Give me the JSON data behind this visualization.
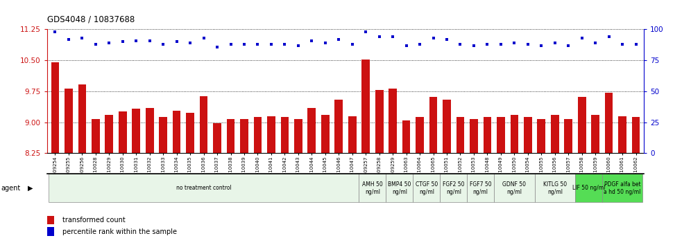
{
  "title": "GDS4048 / 10837688",
  "samples": [
    "GSM509254",
    "GSM509255",
    "GSM509256",
    "GSM510028",
    "GSM510029",
    "GSM510030",
    "GSM510031",
    "GSM510032",
    "GSM510033",
    "GSM510034",
    "GSM510035",
    "GSM510036",
    "GSM510037",
    "GSM510038",
    "GSM510039",
    "GSM510040",
    "GSM510041",
    "GSM510042",
    "GSM510043",
    "GSM510044",
    "GSM510045",
    "GSM510046",
    "GSM510047",
    "GSM509257",
    "GSM509258",
    "GSM509259",
    "GSM510063",
    "GSM510064",
    "GSM510065",
    "GSM510051",
    "GSM510052",
    "GSM510053",
    "GSM510048",
    "GSM510049",
    "GSM510050",
    "GSM510054",
    "GSM510055",
    "GSM510056",
    "GSM510057",
    "GSM510058",
    "GSM510059",
    "GSM510060",
    "GSM510061",
    "GSM510062"
  ],
  "bar_values": [
    10.45,
    9.82,
    9.92,
    9.08,
    9.18,
    9.26,
    9.32,
    9.35,
    9.12,
    9.28,
    9.22,
    9.63,
    8.97,
    9.08,
    9.08,
    9.12,
    9.14,
    9.12,
    9.08,
    9.35,
    9.18,
    9.55,
    9.15,
    10.52,
    9.78,
    9.82,
    9.05,
    9.12,
    9.62,
    9.55,
    9.12,
    9.08,
    9.12,
    9.12,
    9.18,
    9.12,
    9.08,
    9.18,
    9.08,
    9.62,
    9.18,
    9.72,
    9.15,
    9.12
  ],
  "percentile_values": [
    98,
    92,
    93,
    88,
    89,
    90,
    91,
    91,
    88,
    90,
    89,
    93,
    86,
    88,
    88,
    88,
    88,
    88,
    87,
    91,
    89,
    92,
    88,
    98,
    94,
    94,
    87,
    88,
    93,
    92,
    88,
    87,
    88,
    88,
    89,
    88,
    87,
    89,
    87,
    93,
    89,
    94,
    88,
    88
  ],
  "ylim_left": [
    8.25,
    11.25
  ],
  "ylim_right": [
    0,
    100
  ],
  "yticks_left": [
    8.25,
    9.0,
    9.75,
    10.5,
    11.25
  ],
  "yticks_right": [
    0,
    25,
    50,
    75,
    100
  ],
  "bar_color": "#cc1111",
  "dot_color": "#0000cc",
  "bar_width": 0.6,
  "agent_groups": [
    {
      "label": "no treatment control",
      "start": 0,
      "end": 22,
      "color": "#e8f5e8"
    },
    {
      "label": "AMH 50\nng/ml",
      "start": 23,
      "end": 24,
      "color": "#e8f5e8"
    },
    {
      "label": "BMP4 50\nng/ml",
      "start": 25,
      "end": 26,
      "color": "#e8f5e8"
    },
    {
      "label": "CTGF 50\nng/ml",
      "start": 27,
      "end": 28,
      "color": "#e8f5e8"
    },
    {
      "label": "FGF2 50\nng/ml",
      "start": 29,
      "end": 30,
      "color": "#e8f5e8"
    },
    {
      "label": "FGF7 50\nng/ml",
      "start": 31,
      "end": 32,
      "color": "#e8f5e8"
    },
    {
      "label": "GDNF 50\nng/ml",
      "start": 33,
      "end": 35,
      "color": "#e8f5e8"
    },
    {
      "label": "KITLG 50\nng/ml",
      "start": 36,
      "end": 38,
      "color": "#e8f5e8"
    },
    {
      "label": "LIF 50 ng/ml",
      "start": 39,
      "end": 40,
      "color": "#55dd55"
    },
    {
      "label": "PDGF alfa bet\na hd 50 ng/ml",
      "start": 41,
      "end": 43,
      "color": "#55dd55"
    }
  ],
  "legend_red_label": "transformed count",
  "legend_blue_label": "percentile rank within the sample"
}
